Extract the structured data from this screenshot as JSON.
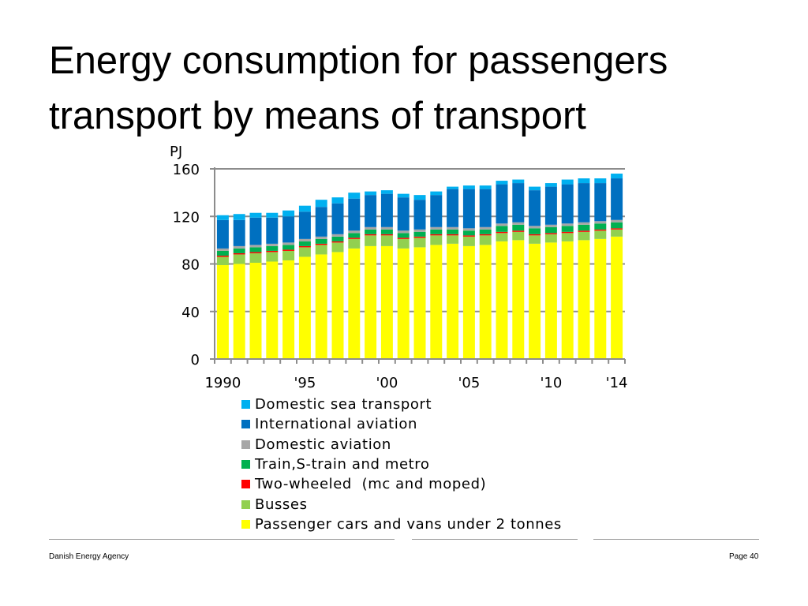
{
  "page": {
    "title_line1": "Energy consumption for passengers",
    "title_line2": "transport by means of transport",
    "footer_left": "Danish Energy Agency",
    "footer_right": "Page 40"
  },
  "chart_data": {
    "type": "bar",
    "stacked": true,
    "title": "Energy consumption for passengers transport by means of transport",
    "ylabel": "PJ",
    "xlabel": "",
    "ylim": [
      0,
      160
    ],
    "yticks": [
      0,
      40,
      80,
      120,
      160
    ],
    "grid": true,
    "legend_position": "bottom",
    "categories": [
      "1990",
      "1991",
      "1992",
      "1993",
      "1994",
      "1995",
      "1996",
      "1997",
      "1998",
      "1999",
      "2000",
      "2001",
      "2002",
      "2003",
      "2004",
      "2005",
      "2006",
      "2007",
      "2008",
      "2009",
      "2010",
      "2011",
      "2012",
      "2013",
      "2014"
    ],
    "xtick_labels": [
      {
        "index": 0,
        "label": "1990"
      },
      {
        "index": 5,
        "label": "'95"
      },
      {
        "index": 10,
        "label": "'00"
      },
      {
        "index": 15,
        "label": "'05"
      },
      {
        "index": 20,
        "label": "'10"
      },
      {
        "index": 24,
        "label": "'14"
      }
    ],
    "series": [
      {
        "name": "Passenger cars and vans under 2 tonnes",
        "color": "#ffff00",
        "values": [
          79,
          80,
          81,
          82,
          83,
          86,
          88,
          90,
          93,
          95,
          95,
          93,
          94,
          96,
          97,
          95,
          96,
          99,
          100,
          97,
          98,
          99,
          100,
          101,
          103
        ]
      },
      {
        "name": "Busses",
        "color": "#92d050",
        "values": [
          7,
          8,
          8,
          8,
          8,
          8,
          8,
          8,
          8,
          9,
          9,
          8,
          8,
          8,
          7,
          8,
          8,
          7,
          7,
          7,
          7,
          7,
          7,
          7,
          6
        ]
      },
      {
        "name": "Two-wheeled  (mc and moped)",
        "color": "#ff0000",
        "values": [
          1,
          1,
          1,
          1,
          1,
          1,
          1,
          1,
          1,
          1,
          1,
          1,
          1,
          1,
          1,
          1,
          1,
          1,
          1,
          1,
          1,
          1,
          1,
          1,
          1
        ]
      },
      {
        "name": "Train,S-train and metro",
        "color": "#00b050",
        "values": [
          4,
          4,
          4,
          4,
          4,
          4,
          4,
          4,
          4,
          4,
          4,
          4,
          4,
          4,
          4,
          4,
          4,
          5,
          5,
          5,
          5,
          5,
          5,
          5,
          5
        ]
      },
      {
        "name": "Domestic aviation",
        "color": "#a6a6a6",
        "values": [
          2,
          2,
          2,
          2,
          2,
          2,
          2,
          2,
          2,
          2,
          2,
          2,
          2,
          2,
          2,
          2,
          2,
          2,
          2,
          2,
          2,
          2,
          2,
          2,
          2
        ]
      },
      {
        "name": "International aviation",
        "color": "#0070c0",
        "values": [
          24,
          22,
          23,
          22,
          22,
          23,
          25,
          26,
          27,
          27,
          28,
          28,
          25,
          27,
          32,
          33,
          32,
          33,
          33,
          30,
          32,
          33,
          33,
          32,
          35
        ]
      },
      {
        "name": "Domestic sea transport",
        "color": "#00b0f0",
        "values": [
          4,
          5,
          4,
          4,
          5,
          5,
          6,
          5,
          5,
          3,
          3,
          3,
          4,
          3,
          2,
          3,
          3,
          3,
          3,
          3,
          3,
          4,
          4,
          4,
          4
        ]
      }
    ]
  }
}
